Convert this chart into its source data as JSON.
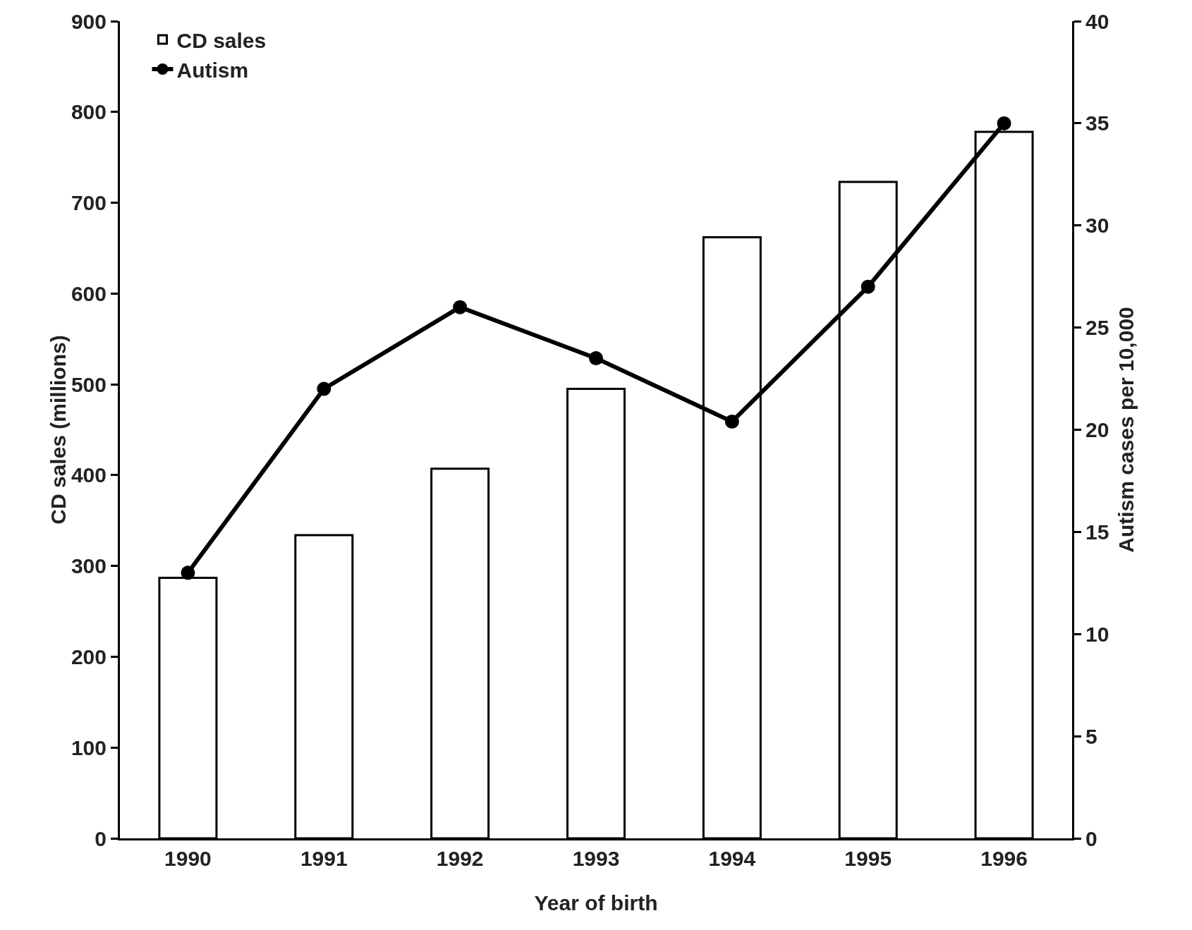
{
  "chart_data": {
    "type": "bar",
    "xlabel": "Year of birth",
    "ylabel": "CD sales (millions)",
    "y2label": "Autism cases per 10,000",
    "categories": [
      "1990",
      "1991",
      "1992",
      "1993",
      "1994",
      "1995",
      "1996"
    ],
    "series": [
      {
        "name": "CD sales",
        "color": "#ffffff",
        "values": [
          287,
          334,
          407,
          495,
          662,
          723,
          778
        ]
      },
      {
        "name": "Autism",
        "type": "line",
        "axis": "y2",
        "color": "#000000",
        "values": [
          13,
          22,
          26,
          23.5,
          20.4,
          27,
          35
        ]
      }
    ],
    "ylim": [
      0,
      900
    ],
    "yticks": [
      0,
      100,
      200,
      300,
      400,
      500,
      600,
      700,
      800,
      900
    ],
    "y2lim": [
      0,
      40
    ],
    "y2ticks": [
      0,
      5,
      10,
      15,
      20,
      25,
      30,
      35,
      40
    ],
    "legend": "top left",
    "marker": "circle",
    "line_style": "solid",
    "grid": false
  }
}
